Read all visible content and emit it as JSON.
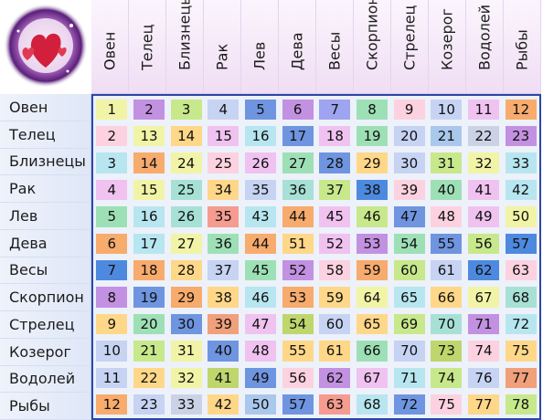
{
  "signs": [
    "Овен",
    "Телец",
    "Близнецы",
    "Рак",
    "Лев",
    "Дева",
    "Весы",
    "Скорпион",
    "Стрелец",
    "Козерог",
    "Водолей",
    "Рыбы"
  ],
  "palette": {
    "a": "#ffd789",
    "b": "#c391e1",
    "c": "#b7e6f0",
    "d": "#c8e88c",
    "e": "#6f95e0",
    "f": "#f59b8f",
    "g": "#9ea4f0",
    "h": "#9ee0b6",
    "i": "#fcd2e0",
    "j": "#f1f4a6",
    "k": "#c7d3f3",
    "l": "#f7ab6d",
    "m": "#f0c2f0",
    "n": "#a7e1d5",
    "o": "#bed66c",
    "p": "#aac8ec",
    "q": "#ccd2e6",
    "r": "#4d8adf",
    "s": "#f0a07a"
  },
  "colors": [
    [
      "j",
      "b",
      "d",
      "k",
      "e",
      "b",
      "g",
      "h",
      "i",
      "k",
      "m",
      "l"
    ],
    [
      "i",
      "j",
      "a",
      "m",
      "c",
      "e",
      "m",
      "h",
      "k",
      "p",
      "q",
      "b"
    ],
    [
      "c",
      "l",
      "j",
      "i",
      "m",
      "h",
      "e",
      "a",
      "k",
      "d",
      "j",
      "c"
    ],
    [
      "m",
      "j",
      "n",
      "a",
      "k",
      "n",
      "d",
      "r",
      "i",
      "h",
      "m",
      "c"
    ],
    [
      "h",
      "c",
      "n",
      "f",
      "c",
      "l",
      "m",
      "d",
      "e",
      "i",
      "m",
      "j"
    ],
    [
      "l",
      "c",
      "j",
      "h",
      "l",
      "a",
      "m",
      "b",
      "h",
      "e",
      "d",
      "r"
    ],
    [
      "r",
      "l",
      "a",
      "k",
      "h",
      "b",
      "i",
      "l",
      "d",
      "k",
      "r",
      "i"
    ],
    [
      "b",
      "e",
      "l",
      "a",
      "c",
      "l",
      "a",
      "j",
      "c",
      "a",
      "j",
      "n"
    ],
    [
      "a",
      "h",
      "e",
      "s",
      "m",
      "o",
      "k",
      "a",
      "d",
      "n",
      "b",
      "c"
    ],
    [
      "k",
      "d",
      "j",
      "e",
      "m",
      "a",
      "a",
      "h",
      "k",
      "o",
      "i",
      "a"
    ],
    [
      "k",
      "a",
      "j",
      "o",
      "e",
      "i",
      "b",
      "m",
      "c",
      "d",
      "k",
      "s"
    ],
    [
      "l",
      "k",
      "q",
      "a",
      "p",
      "e",
      "f",
      "c",
      "e",
      "i",
      "a",
      "d"
    ]
  ],
  "values": [
    [
      1,
      2,
      3,
      4,
      5,
      6,
      7,
      8,
      9,
      10,
      11,
      12
    ],
    [
      2,
      13,
      14,
      15,
      16,
      17,
      18,
      19,
      20,
      21,
      22,
      23
    ],
    [
      3,
      14,
      24,
      25,
      26,
      27,
      28,
      29,
      30,
      31,
      32,
      33
    ],
    [
      4,
      15,
      25,
      34,
      35,
      36,
      37,
      38,
      39,
      40,
      41,
      42
    ],
    [
      5,
      16,
      26,
      35,
      43,
      44,
      45,
      46,
      47,
      48,
      49,
      50
    ],
    [
      6,
      17,
      27,
      36,
      44,
      51,
      52,
      53,
      54,
      55,
      56,
      57
    ],
    [
      7,
      18,
      28,
      37,
      45,
      52,
      58,
      59,
      60,
      61,
      62,
      63
    ],
    [
      8,
      19,
      29,
      38,
      46,
      53,
      59,
      64,
      65,
      66,
      67,
      68
    ],
    [
      9,
      20,
      30,
      39,
      47,
      54,
      60,
      65,
      69,
      70,
      71,
      72
    ],
    [
      10,
      21,
      31,
      40,
      48,
      55,
      61,
      66,
      70,
      73,
      74,
      75
    ],
    [
      11,
      22,
      32,
      41,
      49,
      56,
      62,
      67,
      71,
      74,
      76,
      77
    ],
    [
      12,
      23,
      33,
      42,
      50,
      57,
      63,
      68,
      72,
      75,
      77,
      78
    ]
  ],
  "logo_icon": "hearts-galaxy-icon"
}
